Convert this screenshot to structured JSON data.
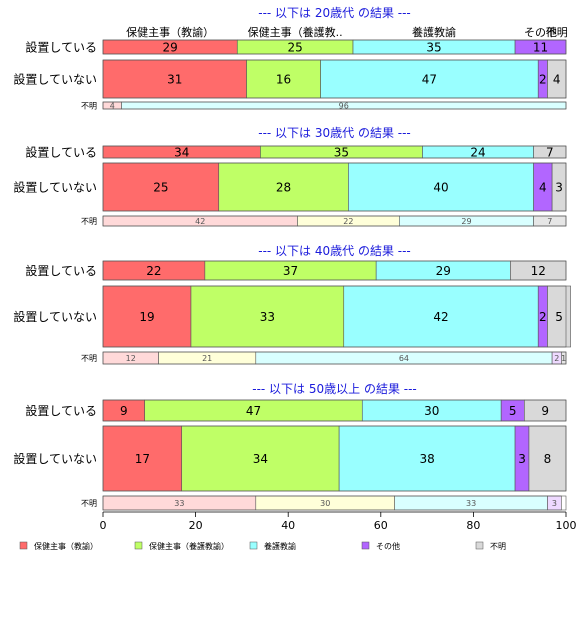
{
  "chart_data": {
    "type": "bar",
    "orientation": "horizontal",
    "stacked": "percent",
    "xlim": [
      0,
      100
    ],
    "x_ticks": [
      "0",
      "20",
      "40",
      "60",
      "80",
      "100"
    ],
    "column_headers": [
      "保健主事（教諭）",
      "保健主事（養護教..",
      "養護教諭",
      "その他",
      "不明"
    ],
    "legend": {
      "position": "bottom",
      "items": [
        {
          "label": "保健主事（教諭）",
          "color": "#FF6B6B"
        },
        {
          "label": "保健主事（養護教諭）",
          "color": "#BFFF66"
        },
        {
          "label": "養護教諭",
          "color": "#99FFFF"
        },
        {
          "label": "その他",
          "color": "#B266FF"
        },
        {
          "label": "不明",
          "color": "#D9D9D9"
        }
      ]
    },
    "groups": [
      {
        "title": "--- 以下は 20歳代 の結果 ---",
        "rows": [
          {
            "label": "設置している",
            "values": [
              29,
              25,
              35,
              11,
              0
            ],
            "value_labels": [
              "29",
              "25",
              "35",
              "11",
              ""
            ],
            "unknown": false
          },
          {
            "label": "設置していない",
            "values": [
              31,
              16,
              47,
              2,
              4
            ],
            "value_labels": [
              "31",
              "16",
              "47",
              "2",
              "4"
            ],
            "unknown": false
          },
          {
            "label": "不明",
            "values": [
              4,
              0,
              96,
              0,
              0
            ],
            "value_labels": [
              "4",
              "",
              "96",
              "",
              ""
            ],
            "unknown": true
          }
        ]
      },
      {
        "title": "--- 以下は 30歳代 の結果 ---",
        "rows": [
          {
            "label": "設置している",
            "values": [
              34,
              35,
              24,
              0,
              7
            ],
            "value_labels": [
              "34",
              "35",
              "24",
              "",
              "7"
            ],
            "unknown": false
          },
          {
            "label": "設置していない",
            "values": [
              25,
              28,
              40,
              4,
              3
            ],
            "value_labels": [
              "25",
              "28",
              "40",
              "4",
              "3"
            ],
            "unknown": false
          },
          {
            "label": "不明",
            "values": [
              42,
              22,
              29,
              0,
              7
            ],
            "value_labels": [
              "42",
              "22",
              "29",
              "",
              "7"
            ],
            "unknown": true
          }
        ]
      },
      {
        "title": "--- 以下は 40歳代 の結果 ---",
        "rows": [
          {
            "label": "設置している",
            "values": [
              22,
              37,
              29,
              0,
              12
            ],
            "value_labels": [
              "22",
              "37",
              "29",
              "",
              "12"
            ],
            "unknown": false
          },
          {
            "label": "設置していない",
            "values": [
              19,
              33,
              42,
              2,
              5
            ],
            "value_labels": [
              "19",
              "33",
              "42",
              "2",
              "5"
            ],
            "unknown": false
          },
          {
            "label": "不明",
            "values": [
              12,
              21,
              64,
              2,
              1
            ],
            "value_labels": [
              "12",
              "21",
              "64",
              "2",
              "1"
            ],
            "unknown": true
          }
        ]
      },
      {
        "title": "--- 以下は 50歳以上 の結果 ---",
        "rows": [
          {
            "label": "設置している",
            "values": [
              9,
              47,
              30,
              5,
              9
            ],
            "value_labels": [
              "9",
              "47",
              "30",
              "5",
              "9"
            ],
            "unknown": false
          },
          {
            "label": "設置していない",
            "values": [
              17,
              34,
              38,
              3,
              8
            ],
            "value_labels": [
              "17",
              "34",
              "38",
              "3",
              "8"
            ],
            "unknown": false
          },
          {
            "label": "不明",
            "values": [
              33,
              30,
              33,
              3,
              0
            ],
            "value_labels": [
              "33",
              "30",
              "33",
              "3",
              ""
            ],
            "unknown": true
          }
        ]
      }
    ],
    "colors": {
      "main": [
        "#FF6B6B",
        "#BFFF66",
        "#99FFFF",
        "#B266FF",
        "#D9D9D9"
      ],
      "unknown": [
        "#FFD9D9",
        "#FFFFD9",
        "#D9FFFF",
        "#EED9FF",
        "#E6E6E6"
      ],
      "title": "#1a1adb"
    }
  }
}
